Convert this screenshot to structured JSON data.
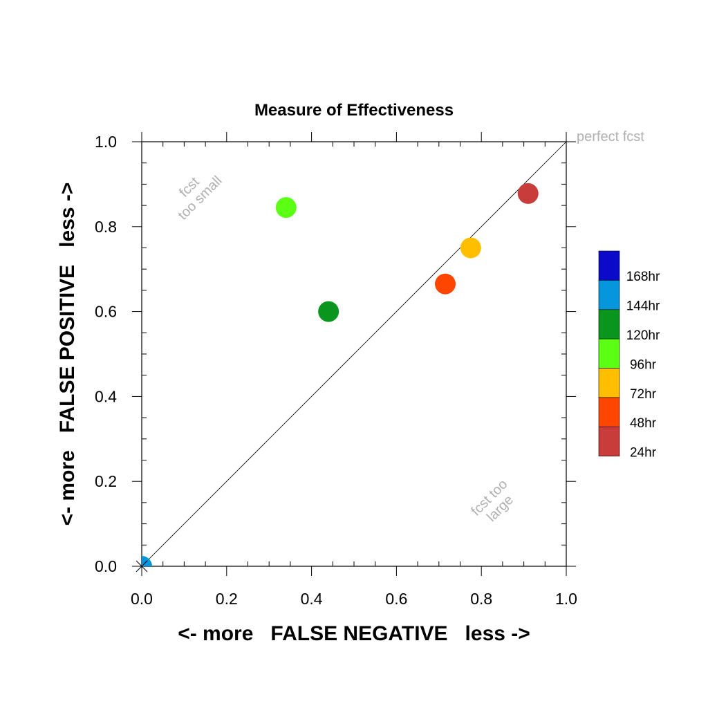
{
  "chart_data": {
    "type": "scatter",
    "title": "Measure of Effectiveness",
    "xlabel": "<- more   FALSE NEGATIVE   less ->",
    "ylabel": "<- more   FALSE POSITIVE   less ->",
    "xlim": [
      0.0,
      1.0
    ],
    "ylim": [
      0.0,
      1.0
    ],
    "x_ticks": [
      "0.0",
      "0.2",
      "0.4",
      "0.6",
      "0.8",
      "1.0"
    ],
    "y_ticks": [
      "0.0",
      "0.2",
      "0.4",
      "0.6",
      "0.8",
      "1.0"
    ],
    "grid": false,
    "reference_line": "diagonal",
    "annotations": {
      "perfect": "perfect fcst",
      "small_line1": "fcst",
      "small_line2": "too small",
      "large_line1": "fcst too",
      "large_line2": "large"
    },
    "legend_position": "right",
    "series": [
      {
        "name": "168hr",
        "color": "#0a0ac8",
        "points": []
      },
      {
        "name": "144hr",
        "color": "#0596dc",
        "points": [
          {
            "x": 0.0,
            "y": 0.0
          }
        ]
      },
      {
        "name": "120hr",
        "color": "#0a961e",
        "points": [
          {
            "x": 0.44,
            "y": 0.6
          }
        ]
      },
      {
        "name": "96hr",
        "color": "#5aff14",
        "points": [
          {
            "x": 0.34,
            "y": 0.845
          }
        ]
      },
      {
        "name": "72hr",
        "color": "#ffbe00",
        "points": [
          {
            "x": 0.775,
            "y": 0.75
          }
        ]
      },
      {
        "name": "48hr",
        "color": "#ff4600",
        "points": [
          {
            "x": 0.715,
            "y": 0.665
          }
        ]
      },
      {
        "name": "24hr",
        "color": "#c83c3c",
        "points": [
          {
            "x": 0.91,
            "y": 0.878
          }
        ]
      }
    ]
  }
}
